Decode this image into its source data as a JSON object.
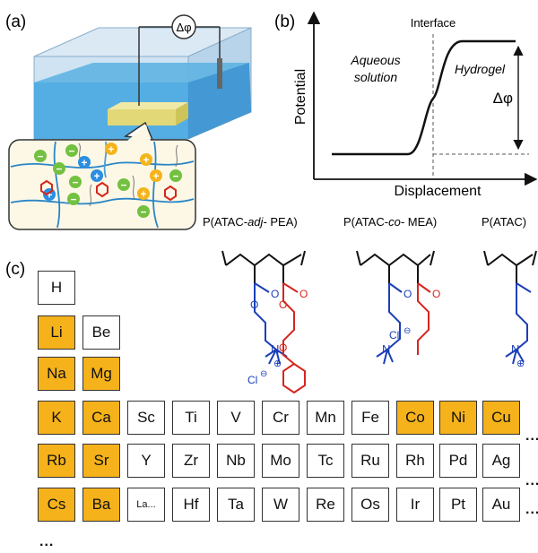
{
  "panel_a": {
    "label": "(a)",
    "delta_phi": "Δφ",
    "ion_signs": [
      "−",
      "−",
      "+",
      "+",
      "−",
      "−",
      "+",
      "+",
      "+",
      "−",
      "−",
      "−",
      "+",
      "+",
      "−"
    ]
  },
  "panel_b": {
    "label": "(b)",
    "interface": "Interface",
    "aqueous_1": "Aqueous",
    "aqueous_2": "solution",
    "hydrogel": "Hydrogel",
    "delta_phi": "Δφ",
    "ylabel": "Potential",
    "xlabel": "Displacement"
  },
  "polymers": {
    "p1_a": "P(ATAC-",
    "p1_b": "adj-",
    "p1_c": " PEA)",
    "p2_a": "P(ATAC-",
    "p2_b": "co-",
    "p2_c": " MEA)",
    "p3": "P(ATAC)",
    "atoms": {
      "O": "O",
      "N": "N",
      "Cl": "Cl",
      "minus": "⊖",
      "plus": "⊕"
    }
  },
  "panel_c": {
    "label": "(c)",
    "highlight_color": "#f5b21b",
    "rows": [
      [
        {
          "s": "H",
          "hl": false
        }
      ],
      [
        {
          "s": "Li",
          "hl": true
        },
        {
          "s": "Be",
          "hl": false
        }
      ],
      [
        {
          "s": "Na",
          "hl": true
        },
        {
          "s": "Mg",
          "hl": true
        }
      ],
      [
        {
          "s": "K",
          "hl": true
        },
        {
          "s": "Ca",
          "hl": true
        },
        {
          "s": "Sc",
          "hl": false
        },
        {
          "s": "Ti",
          "hl": false
        },
        {
          "s": "V",
          "hl": false
        },
        {
          "s": "Cr",
          "hl": false
        },
        {
          "s": "Mn",
          "hl": false
        },
        {
          "s": "Fe",
          "hl": false
        },
        {
          "s": "Co",
          "hl": true
        },
        {
          "s": "Ni",
          "hl": true
        },
        {
          "s": "Cu",
          "hl": true
        }
      ],
      [
        {
          "s": "Rb",
          "hl": true
        },
        {
          "s": "Sr",
          "hl": true
        },
        {
          "s": "Y",
          "hl": false
        },
        {
          "s": "Zr",
          "hl": false
        },
        {
          "s": "Nb",
          "hl": false
        },
        {
          "s": "Mo",
          "hl": false
        },
        {
          "s": "Tc",
          "hl": false
        },
        {
          "s": "Ru",
          "hl": false
        },
        {
          "s": "Rh",
          "hl": false
        },
        {
          "s": "Pd",
          "hl": false
        },
        {
          "s": "Ag",
          "hl": false
        }
      ],
      [
        {
          "s": "Cs",
          "hl": true
        },
        {
          "s": "Ba",
          "hl": true
        },
        {
          "s": "La...",
          "hl": false
        },
        {
          "s": "Hf",
          "hl": false
        },
        {
          "s": "Ta",
          "hl": false
        },
        {
          "s": "W",
          "hl": false
        },
        {
          "s": "Re",
          "hl": false
        },
        {
          "s": "Os",
          "hl": false
        },
        {
          "s": "Ir",
          "hl": false
        },
        {
          "s": "Pt",
          "hl": false
        },
        {
          "s": "Au",
          "hl": false
        }
      ]
    ],
    "dots": "...",
    "bottom_dots": "..."
  }
}
